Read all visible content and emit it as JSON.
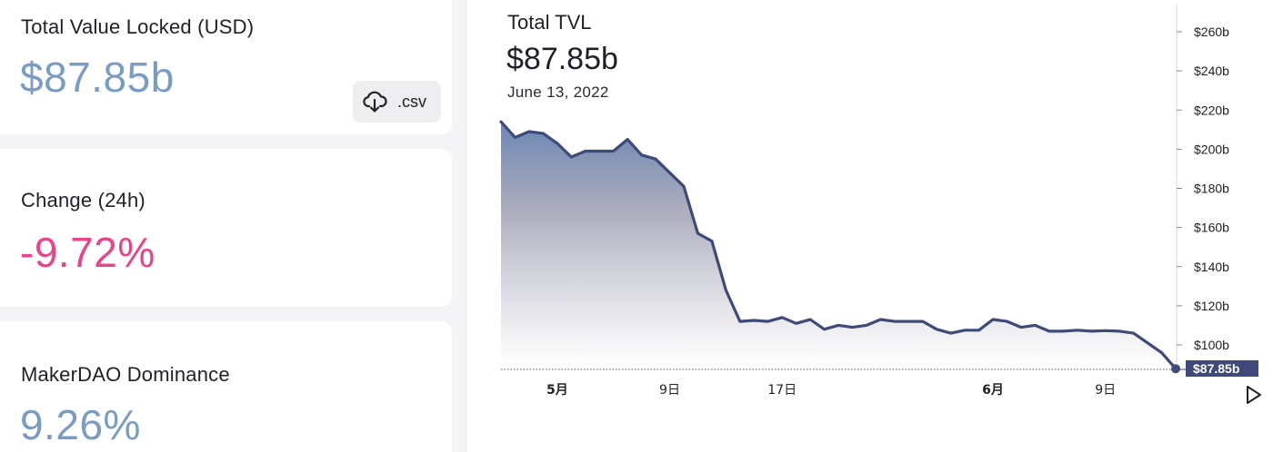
{
  "stats": {
    "tvl": {
      "label": "Total Value Locked (USD)",
      "value": "$87.85b",
      "color": "#7a9cc2"
    },
    "change": {
      "label": "Change (24h)",
      "value": "-9.72%",
      "color": "#e9448a"
    },
    "dominance": {
      "label": "MakerDAO Dominance",
      "value": "9.26%",
      "color": "#7a9cc2"
    },
    "csv_button": {
      "label": ".csv",
      "icon": "cloud-download-icon"
    }
  },
  "chart": {
    "title": "Total TVL",
    "value": "$87.85b",
    "date": "June 13, 2022",
    "play_icon": "play-icon"
  },
  "chart_data": {
    "type": "area",
    "title": "Total TVL",
    "xlabel": "",
    "ylabel": "",
    "ylim": [
      88,
      262
    ],
    "y_ticks": [
      100,
      120,
      140,
      160,
      180,
      200,
      220,
      240,
      260
    ],
    "y_tick_labels": [
      "$100b",
      "$120b",
      "$140b",
      "$160b",
      "$180b",
      "$200b",
      "$220b",
      "$240b",
      "$260b"
    ],
    "x_ticks": [
      {
        "index": 4,
        "label": "5月",
        "bold": true
      },
      {
        "index": 12,
        "label": "9日",
        "bold": false
      },
      {
        "index": 20,
        "label": "17日",
        "bold": false
      },
      {
        "index": 35,
        "label": "6月",
        "bold": true
      },
      {
        "index": 43,
        "label": "9日",
        "bold": false
      }
    ],
    "last_value_label": "$87.85b",
    "line_color": "#3d4a7a",
    "series": [
      {
        "values": [
          214,
          206,
          209,
          208,
          203,
          196,
          199,
          199,
          199,
          205,
          197,
          195,
          188,
          181,
          157,
          153,
          128,
          112,
          112.5,
          112,
          114,
          111,
          113,
          108,
          110,
          109,
          110,
          113,
          112,
          112,
          112,
          108,
          106,
          107.5,
          107.5,
          113,
          112,
          109,
          110,
          107,
          107,
          107.5,
          107,
          107.3,
          107,
          106,
          101,
          96,
          87.85
        ]
      }
    ]
  }
}
